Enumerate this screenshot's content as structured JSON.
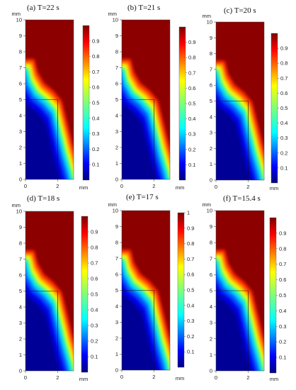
{
  "figure": {
    "x_unit": "mm",
    "y_unit": "mm",
    "x_ticks": [
      0,
      2
    ],
    "y_ticks": [
      0,
      1,
      2,
      3,
      4,
      5,
      6,
      7,
      8,
      9,
      10
    ],
    "inner_rect_mm": {
      "x": [
        0,
        2
      ],
      "y": [
        0,
        5
      ]
    }
  },
  "chart_data": [
    {
      "type": "heatmap",
      "title": "(a)  T=22 s",
      "xlim": [
        0,
        3
      ],
      "ylim": [
        0,
        10
      ],
      "colorbar": {
        "ticks": [
          0.1,
          0.2,
          0.3,
          0.4,
          0.5,
          0.6,
          0.7,
          0.8,
          0.9
        ],
        "range": [
          0,
          1
        ]
      }
    },
    {
      "type": "heatmap",
      "title": "(b) T=21 s",
      "xlim": [
        0,
        3
      ],
      "ylim": [
        0,
        10
      ],
      "colorbar": {
        "ticks": [
          0.1,
          0.2,
          0.3,
          0.4,
          0.5,
          0.6,
          0.7,
          0.8,
          0.9
        ],
        "range": [
          0,
          1
        ]
      }
    },
    {
      "type": "heatmap",
      "title": "(c) T=20 s",
      "xlim": [
        0,
        3
      ],
      "ylim": [
        0,
        10
      ],
      "colorbar": {
        "ticks": [
          0.1,
          0.2,
          0.3,
          0.4,
          0.5,
          0.6,
          0.7,
          0.8,
          0.9
        ],
        "range": [
          0,
          1
        ]
      }
    },
    {
      "type": "heatmap",
      "title": "(d) T=18 s",
      "xlim": [
        0,
        3
      ],
      "ylim": [
        0,
        10
      ],
      "colorbar": {
        "ticks": [
          0.1,
          0.2,
          0.3,
          0.4,
          0.5,
          0.6,
          0.7,
          0.8,
          0.9
        ],
        "range": [
          0,
          1
        ]
      }
    },
    {
      "type": "heatmap",
      "title": "(e) T=17 s",
      "xlim": [
        0,
        3
      ],
      "ylim": [
        0,
        10
      ],
      "colorbar": {
        "ticks": [
          0.1,
          0.2,
          0.3,
          0.4,
          0.5,
          0.6,
          0.7,
          0.8,
          0.9,
          1
        ],
        "range": [
          0,
          1
        ]
      }
    },
    {
      "type": "heatmap",
      "title": "(f) T=15.4 s",
      "xlim": [
        0,
        3
      ],
      "ylim": [
        0,
        10
      ],
      "colorbar": {
        "ticks": [
          0.1,
          0.2,
          0.3,
          0.4,
          0.5,
          0.6,
          0.7,
          0.8,
          0.9
        ],
        "range": [
          0,
          1
        ]
      }
    }
  ]
}
